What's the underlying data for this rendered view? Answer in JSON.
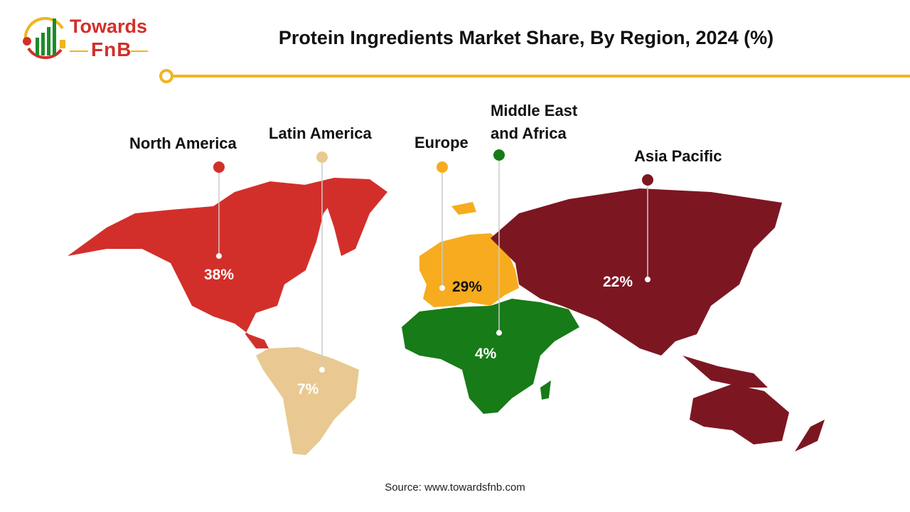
{
  "logo": {
    "line1": "Towards",
    "line2": "FnB"
  },
  "title": "Protein Ingredients Market Share, By Region, 2024 (%)",
  "source": "Source: www.towardsfnb.com",
  "regions": [
    {
      "name": "North America",
      "value": "38%",
      "color": "#d32f2a"
    },
    {
      "name": "Latin America",
      "value": "7%",
      "color": "#e9c991"
    },
    {
      "name": "Europe",
      "value": "29%",
      "color": "#f6ac1e"
    },
    {
      "name": "Middle East and Africa",
      "line1": "Middle East",
      "line2": "and Africa",
      "value": "4%",
      "color": "#177b18"
    },
    {
      "name": "Asia Pacific",
      "value": "22%",
      "color": "#7c1722"
    }
  ]
}
